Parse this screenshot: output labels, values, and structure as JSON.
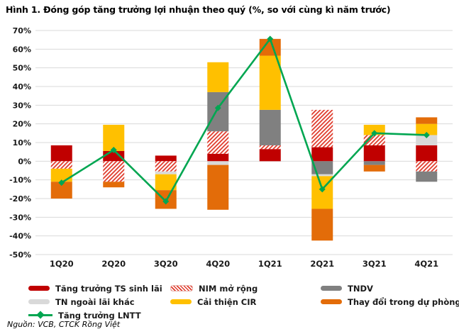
{
  "title": "Hình 1. Đóng góp tăng trưởng lợi nhuận theo quý (%, so với cùng kì năm trước)",
  "source": "Nguồn: VCB, CTCK Rồng Việt",
  "colors": {
    "grid": "#d9d9d9",
    "axis_text": "#1a1a1a",
    "background": "#ffffff"
  },
  "chart_data": {
    "type": "bar",
    "subtype": "stacked-bars-with-line-overlay",
    "title": "Hình 1. Đóng góp tăng trưởng lợi nhuận theo quý (%, so với cùng kì năm trước)",
    "categories": [
      "1Q20",
      "2Q20",
      "3Q20",
      "4Q20",
      "1Q21",
      "2Q21",
      "3Q21",
      "4Q21"
    ],
    "series": [
      {
        "name": "Tăng trưởng TS sinh lãi",
        "kind": "bar",
        "style": "solid",
        "color": "#c00000",
        "values": [
          8.5,
          5.5,
          3,
          4,
          6.5,
          7.5,
          8.5,
          8.5
        ]
      },
      {
        "name": "NIM mở rộng",
        "kind": "bar",
        "style": "hatch",
        "color": "#e03a2b",
        "values": [
          -4,
          -11,
          -5.5,
          12,
          2,
          20,
          5.5,
          -5.5
        ]
      },
      {
        "name": "TNDV",
        "kind": "bar",
        "style": "solid",
        "color": "#808080",
        "values": [
          0,
          0,
          0,
          21,
          19,
          -7,
          -2,
          -5.5
        ]
      },
      {
        "name": "TN ngoài lãi khác",
        "kind": "bar",
        "style": "solid",
        "color": "#d9d9d9",
        "values": [
          0,
          0,
          -1.5,
          -2,
          0,
          -1,
          0,
          5.5
        ]
      },
      {
        "name": "Cải thiện CIR",
        "kind": "bar",
        "style": "solid",
        "color": "#ffc000",
        "values": [
          -7,
          14,
          -8.5,
          16,
          29,
          -17.5,
          5.5,
          6
        ]
      },
      {
        "name": "Thay đổi trong dự phòng",
        "kind": "bar",
        "style": "solid",
        "color": "#e36c09",
        "values": [
          -9,
          -3,
          -10,
          -24,
          9,
          -17,
          -3.5,
          3.5
        ]
      },
      {
        "name": "Tăng trưởng LNTT",
        "kind": "line",
        "style": "line-diamond",
        "color": "#00a651",
        "values": [
          -11.5,
          6,
          -21.5,
          28.5,
          65.5,
          -15,
          15,
          14
        ]
      }
    ],
    "ylim": [
      -50,
      70
    ],
    "ytick_step": 10,
    "ytick_suffix": "%",
    "grid": true,
    "legend_position": "bottom"
  }
}
